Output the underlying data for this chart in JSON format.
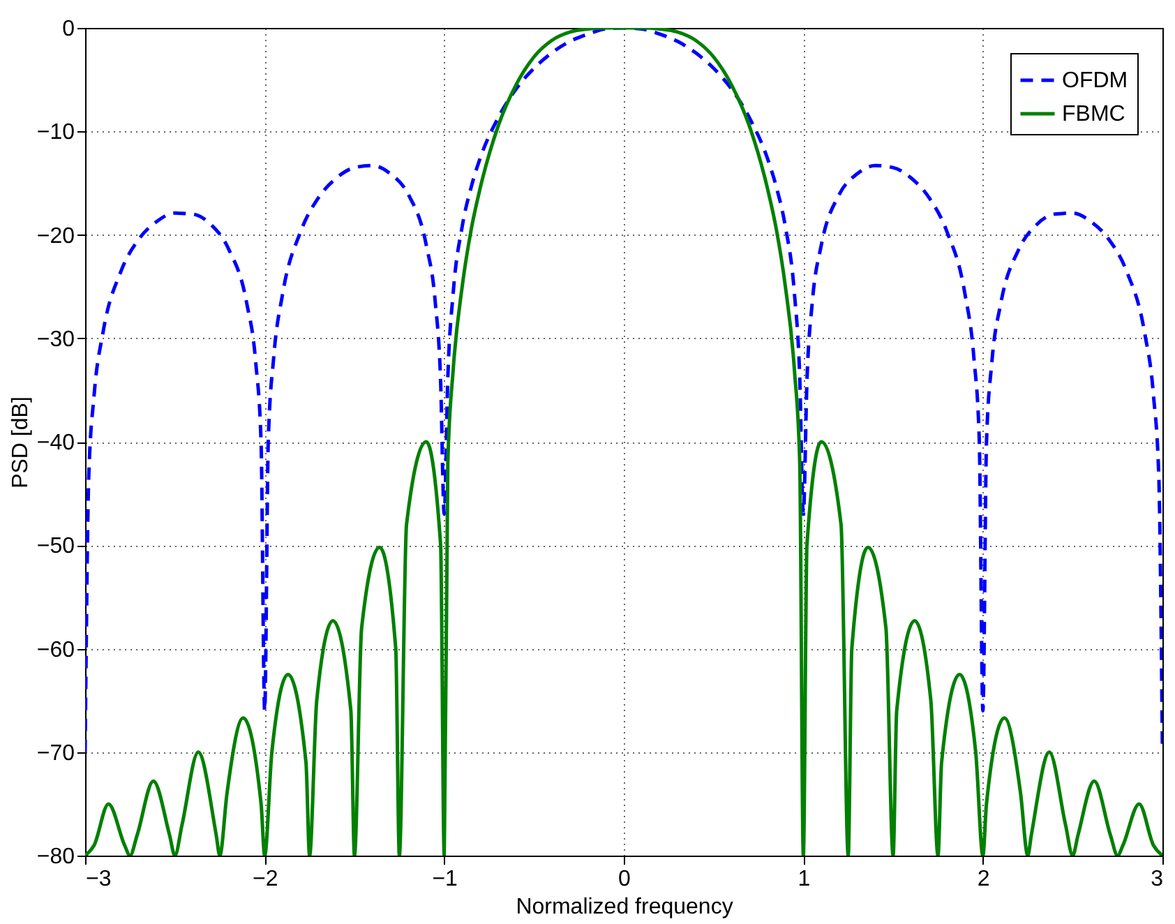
{
  "chart_data": {
    "type": "line",
    "xlabel": "Normalized frequency",
    "ylabel": "PSD [dB]",
    "xlim": [
      -3,
      3
    ],
    "ylim": [
      -80,
      0
    ],
    "xticks": [
      -3,
      -2,
      -1,
      0,
      1,
      2,
      3
    ],
    "yticks": [
      -80,
      -70,
      -60,
      -50,
      -40,
      -30,
      -20,
      -10,
      0
    ],
    "grid": true,
    "legend": "top right",
    "series": [
      {
        "name": "OFDM",
        "color": "#0000ff",
        "line_style": "dashed",
        "x": [
          -3.0,
          -2.98,
          -2.95,
          -2.9,
          -2.8,
          -2.7,
          -2.6,
          -2.5,
          -2.4,
          -2.3,
          -2.2,
          -2.1,
          -2.05,
          -2.02,
          -2.0,
          -1.98,
          -1.95,
          -1.9,
          -1.8,
          -1.7,
          -1.6,
          -1.5,
          -1.4,
          -1.3,
          -1.2,
          -1.1,
          -1.05,
          -1.02,
          -1.0,
          -0.98,
          -0.95,
          -0.9,
          -0.85,
          -0.8,
          -0.7,
          -0.6,
          -0.5,
          -0.4,
          -0.3,
          -0.2,
          -0.1,
          0,
          0.1,
          0.2,
          0.3,
          0.4,
          0.5,
          0.6,
          0.7,
          0.8,
          0.85,
          0.9,
          0.95,
          0.98,
          1.0,
          1.02,
          1.05,
          1.1,
          1.2,
          1.3,
          1.4,
          1.5,
          1.6,
          1.7,
          1.8,
          1.9,
          1.95,
          1.98,
          2.0,
          2.02,
          2.05,
          2.1,
          2.2,
          2.3,
          2.4,
          2.5,
          2.6,
          2.7,
          2.8,
          2.9,
          2.95,
          2.98,
          3.0
        ],
        "values": [
          -70,
          -43.5,
          -35.5,
          -29.4,
          -23.5,
          -20.4,
          -18.7,
          -17.9,
          -18.0,
          -19.0,
          -21.4,
          -26.6,
          -32.3,
          -40.1,
          -66,
          -39.9,
          -31.9,
          -25.7,
          -19.7,
          -16.4,
          -14.5,
          -13.5,
          -13.3,
          -14.1,
          -16.1,
          -21.0,
          -26.5,
          -34.2,
          -47,
          -33.8,
          -25.6,
          -19.2,
          -15.4,
          -12.6,
          -8.7,
          -5.9,
          -3.9,
          -2.4,
          -1.3,
          -0.6,
          -0.1,
          0,
          -0.1,
          -0.6,
          -1.3,
          -2.4,
          -3.9,
          -5.9,
          -8.7,
          -12.6,
          -15.4,
          -19.2,
          -25.6,
          -33.8,
          -47,
          -34.2,
          -26.5,
          -21.0,
          -16.1,
          -14.1,
          -13.3,
          -13.5,
          -14.5,
          -16.4,
          -19.7,
          -25.7,
          -31.9,
          -39.9,
          -66,
          -40.1,
          -32.3,
          -26.6,
          -21.4,
          -19.0,
          -18.0,
          -17.9,
          -18.7,
          -20.4,
          -23.5,
          -29.4,
          -35.5,
          -43.5,
          -70
        ]
      },
      {
        "name": "FBMC",
        "color": "#008000",
        "line_style": "solid",
        "x": [
          -3.0,
          -2.95,
          -2.87,
          -2.78,
          -2.75,
          -2.71,
          -2.62,
          -2.53,
          -2.5,
          -2.46,
          -2.37,
          -2.27,
          -2.25,
          -2.21,
          -2.12,
          -2.02,
          -2.0,
          -1.96,
          -1.87,
          -1.77,
          -1.75,
          -1.71,
          -1.62,
          -1.52,
          -1.5,
          -1.46,
          -1.36,
          -1.27,
          -1.25,
          -1.21,
          -1.1,
          -1.02,
          -1.0,
          -0.98,
          -0.95,
          -0.9,
          -0.85,
          -0.8,
          -0.7,
          -0.6,
          -0.5,
          -0.4,
          -0.3,
          -0.2,
          -0.1,
          0,
          0.1,
          0.2,
          0.3,
          0.4,
          0.5,
          0.6,
          0.7,
          0.8,
          0.85,
          0.9,
          0.95,
          0.98,
          1.0,
          1.02,
          1.1,
          1.21,
          1.25,
          1.27,
          1.36,
          1.46,
          1.5,
          1.52,
          1.62,
          1.71,
          1.75,
          1.77,
          1.87,
          1.96,
          2.0,
          2.02,
          2.12,
          2.21,
          2.25,
          2.27,
          2.37,
          2.46,
          2.5,
          2.53,
          2.62,
          2.71,
          2.75,
          2.78,
          2.87,
          2.95,
          3.0
        ],
        "values": [
          -80,
          -79,
          -75,
          -79,
          -80,
          -78,
          -72.8,
          -78,
          -80,
          -77,
          -70,
          -78,
          -80,
          -74,
          -66.7,
          -75,
          -80,
          -70,
          -62.5,
          -71,
          -80,
          -65,
          -57.3,
          -66,
          -80,
          -58,
          -50.2,
          -60,
          -80,
          -48,
          -40,
          -50,
          -80,
          -42,
          -33,
          -25,
          -19.5,
          -15.5,
          -9.5,
          -5.5,
          -2.8,
          -1.2,
          -0.4,
          -0.1,
          0,
          0,
          0,
          -0.1,
          -0.4,
          -1.2,
          -2.8,
          -5.5,
          -9.5,
          -15.5,
          -19.5,
          -25,
          -33,
          -42,
          -80,
          -50,
          -40,
          -48,
          -80,
          -60,
          -50.2,
          -58,
          -80,
          -66,
          -57.3,
          -65,
          -80,
          -71,
          -62.5,
          -70,
          -80,
          -75,
          -66.7,
          -74,
          -80,
          -78,
          -70,
          -77,
          -80,
          -78,
          -72.8,
          -78,
          -80,
          -79,
          -75,
          -79,
          -80
        ]
      }
    ]
  }
}
